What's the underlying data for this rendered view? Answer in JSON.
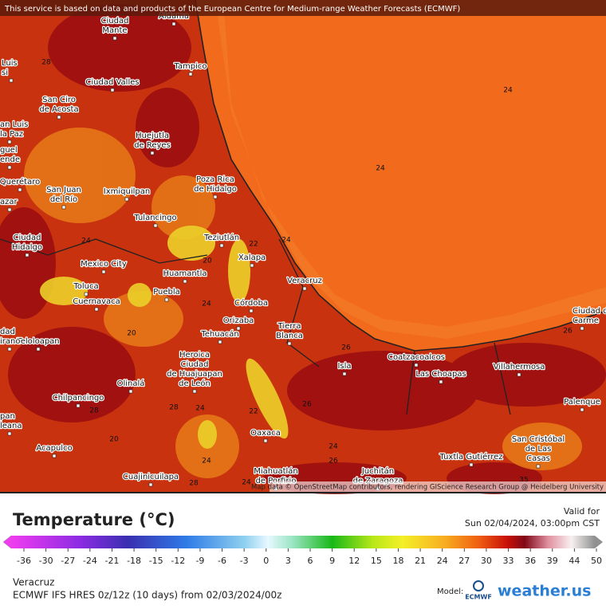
{
  "header": {
    "notice": "This service is based on data and products of the European Centre for Medium-range Weather Forecasts (ECMWF)"
  },
  "map": {
    "places": [
      [
        "Ciudad",
        "Mante"
      ],
      [
        "Aldama"
      ],
      [
        "Tampico"
      ],
      [
        "Luis",
        "si"
      ],
      [
        "Ciudad Valles"
      ],
      [
        "San Ciro",
        "de Acosta"
      ],
      [
        "an Luis",
        "la Paz"
      ],
      [
        "guel",
        "ende"
      ],
      [
        "Huejutla",
        "de Reyes"
      ],
      [
        "Querétaro"
      ],
      [
        "San Juan",
        "del Río"
      ],
      [
        "Ixmiquilpan"
      ],
      [
        "Poza Rica",
        "de Hidalgo"
      ],
      [
        "azar"
      ],
      [
        "Tulancingo"
      ],
      [
        "Ciudad",
        "Hidalgo"
      ],
      [
        "Teziutlán"
      ],
      [
        "Xalapa"
      ],
      [
        "Mexico City"
      ],
      [
        "Huamantla"
      ],
      [
        "Veracruz"
      ],
      [
        "Toluca"
      ],
      [
        "Puebla"
      ],
      [
        "Cuernavaca"
      ],
      [
        "Córdoba"
      ],
      [
        "Orizaba"
      ],
      [
        "Tehuacán"
      ],
      [
        "Tierra",
        "Blanca"
      ],
      [
        "Teloloapan"
      ],
      [
        "dad",
        "irano"
      ],
      [
        "Heroica",
        "Ciudad",
        "de Huajuapan",
        "de León"
      ],
      [
        "Coatzacoalcos"
      ],
      [
        "Isla"
      ],
      [
        "Las Choapas"
      ],
      [
        "Villahermosa"
      ],
      [
        "Olinalá"
      ],
      [
        "Chilpancingo"
      ],
      [
        "Palenque"
      ],
      [
        "pan",
        "leana"
      ],
      [
        "Oaxaca"
      ],
      [
        "San Cristóbal",
        "de Las",
        "Casas"
      ],
      [
        "Acapulco"
      ],
      [
        "Tuxtla Gutiérrez"
      ],
      [
        "Miahuatlán",
        "de Porfirio"
      ],
      [
        "Juchitán",
        "de Zaragoza"
      ],
      [
        "Cuajinicuilapa"
      ],
      [
        "Ciudad d",
        "Carme"
      ]
    ],
    "contours": [
      24,
      24,
      24,
      22,
      20,
      24,
      24,
      26,
      26,
      28,
      24,
      22,
      24,
      26,
      24,
      28,
      28,
      20,
      20,
      24,
      26,
      28,
      35
    ],
    "attribution": "Map data © OpenStreetMap contributors, rendering GIScience Research Group @ Heidelberg University"
  },
  "legend": {
    "title": "Temperature (°C)",
    "valid_label": "Valid for",
    "valid_time": "Sun 02/04/2024, 03:00pm CST",
    "ticks": [
      -36,
      -30,
      -27,
      -24,
      -21,
      -18,
      -15,
      -12,
      -9,
      -6,
      -3,
      0,
      3,
      6,
      9,
      12,
      15,
      18,
      21,
      24,
      27,
      30,
      33,
      36,
      39,
      44,
      50
    ]
  },
  "footer": {
    "region": "Veracruz",
    "model_run": "ECMWF IFS HRES 0z/12z (10 days) from 02/03/2024/00z",
    "model_label": "Model:",
    "model_name": "ECMWF",
    "brand": "weather.us"
  }
}
